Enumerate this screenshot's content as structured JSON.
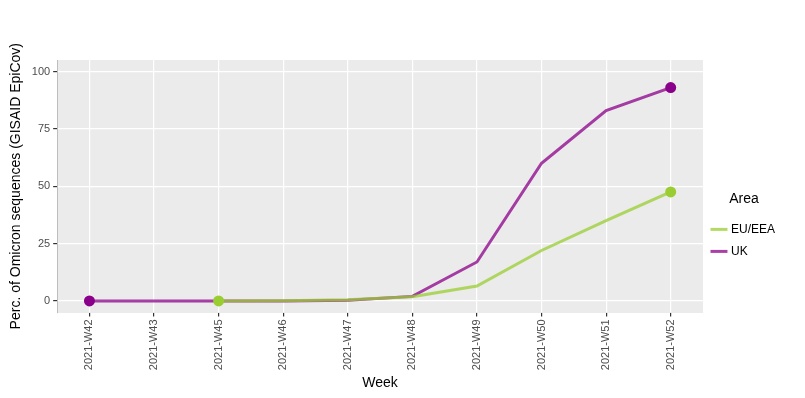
{
  "chart_data": {
    "type": "line",
    "x_label": "Week",
    "y_label": "Perc. of Omicron sequences (GISAID EpiCov)",
    "legend_title": "Area",
    "categories": [
      "2021-W42",
      "2021-W43",
      "2021-W45",
      "2021-W46",
      "2021-W47",
      "2021-W48",
      "2021-W49",
      "2021-W50",
      "2021-W51",
      "2021-W52"
    ],
    "series": [
      {
        "name": "EU/EEA",
        "color": "#9acd32",
        "marker": "ends",
        "values": [
          null,
          null,
          0,
          0.1,
          0.5,
          1.8,
          6.5,
          22,
          35,
          47.5
        ]
      },
      {
        "name": "UK",
        "color": "#8b008b",
        "marker": "ends",
        "values": [
          0,
          0,
          0,
          0,
          0.3,
          2,
          17,
          60,
          83,
          93
        ]
      }
    ],
    "ylim": [
      -5,
      105
    ],
    "yticks": [
      0,
      25,
      50,
      75,
      100
    ],
    "grid": true,
    "legend": "right"
  }
}
